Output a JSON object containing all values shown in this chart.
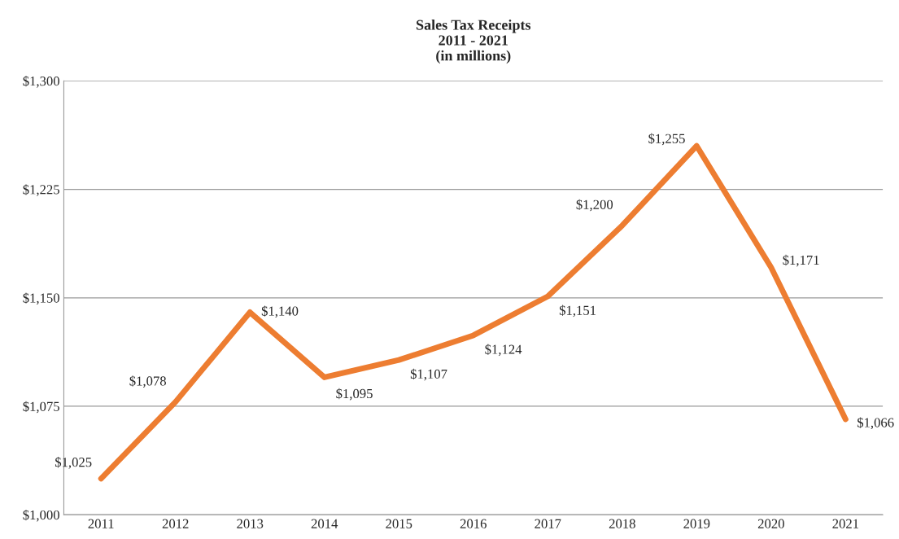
{
  "chart_data": {
    "type": "line",
    "title": "Sales Tax Receipts\n2011 - 2021\n(in millions)",
    "categories": [
      "2011",
      "2012",
      "2013",
      "2014",
      "2015",
      "2016",
      "2017",
      "2018",
      "2019",
      "2020",
      "2021"
    ],
    "series": [
      {
        "color": "#ed7d31",
        "values": [
          1025,
          1078,
          1140,
          1095,
          1107,
          1124,
          1151,
          1200,
          1255,
          1171,
          1066
        ],
        "value_labels": [
          "$1,025",
          "$1,078",
          "$1,140",
          "$1,095",
          "$1,107",
          "$1,124",
          "$1,151",
          "$1,200",
          "$1,255",
          "$1,171",
          "$1,066"
        ]
      }
    ],
    "ylim": [
      1000,
      1300
    ],
    "yticks": [
      {
        "value": 1000,
        "label": "$1,000"
      },
      {
        "value": 1075,
        "label": "$1,075"
      },
      {
        "value": 1150,
        "label": "$1,150"
      },
      {
        "value": 1225,
        "label": "$1,225"
      },
      {
        "value": 1300,
        "label": "$1,300"
      }
    ],
    "grid": "y",
    "marker": "none",
    "line_style": "solid"
  }
}
